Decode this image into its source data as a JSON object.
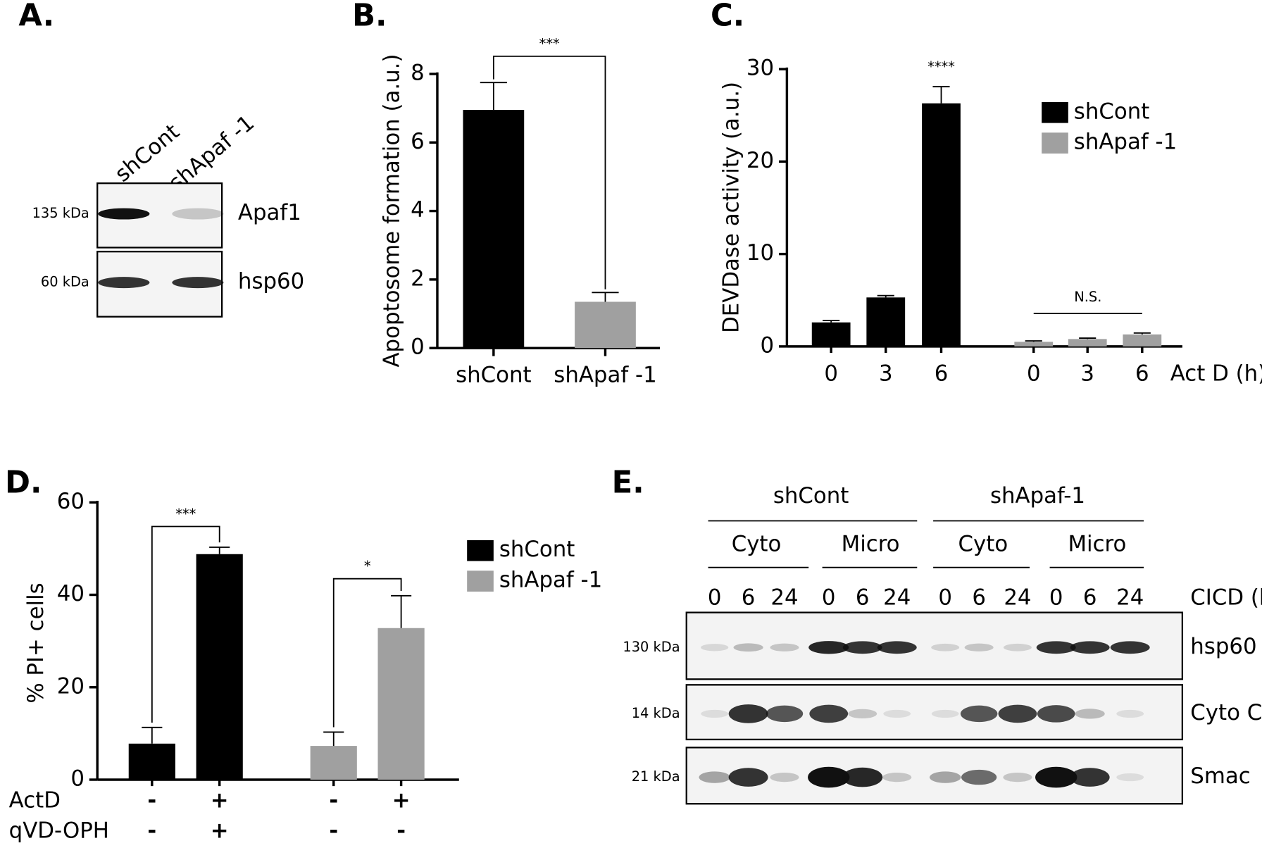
{
  "panels": {
    "A": {
      "letter": "A.",
      "lanes": [
        "shCont",
        "shApaf -1"
      ],
      "rows": [
        {
          "marker": "135 kDa",
          "label": "Apaf1"
        },
        {
          "marker": "60 kDa",
          "label": "hsp60"
        }
      ]
    },
    "E": {
      "letter": "E.",
      "groups": [
        "shCont",
        "shApaf-1"
      ],
      "fractions": [
        "Cyto",
        "Micro",
        "Cyto",
        "Micro"
      ],
      "times": [
        "0",
        "6",
        "24",
        "0",
        "6",
        "24",
        "0",
        "6",
        "24",
        "0",
        "6",
        "24"
      ],
      "time_label": "CICD (h)",
      "rows": [
        {
          "marker": "130 kDa",
          "label": "hsp60"
        },
        {
          "marker": "14 kDa",
          "label": "Cyto C"
        },
        {
          "marker": "21 kDa",
          "label": "Smac"
        }
      ]
    }
  },
  "chart_data": [
    {
      "type": "bar",
      "panel": "B.",
      "ylabel": "Apoptosome formation (a.u.)",
      "categories": [
        "shCont",
        "shApaf -1"
      ],
      "values": [
        6.95,
        1.35
      ],
      "errors": [
        0.8,
        0.27
      ],
      "colors": [
        "#000000",
        "#a0a0a0"
      ],
      "ylim": [
        0,
        8
      ],
      "yticks": [
        0,
        2,
        4,
        6,
        8
      ],
      "annotations": [
        "***"
      ]
    },
    {
      "type": "grouped_bar",
      "panel": "C.",
      "ylabel": "DEVDase activity (a.u.)",
      "xlabel": "Act D (h)",
      "categories": [
        "0",
        "3",
        "6"
      ],
      "series": [
        {
          "name": "shCont",
          "color": "#000000",
          "values": [
            2.6,
            5.3,
            26.3
          ],
          "errors": [
            0.2,
            0.2,
            1.8
          ]
        },
        {
          "name": "shApaf -1",
          "color": "#a0a0a0",
          "values": [
            0.5,
            0.8,
            1.3
          ],
          "errors": [
            0.1,
            0.1,
            0.15
          ]
        }
      ],
      "ylim": [
        0,
        30
      ],
      "yticks": [
        0,
        10,
        20,
        30
      ],
      "legend": "upper right",
      "annotations": [
        "****",
        "N.S."
      ]
    },
    {
      "type": "grouped_bar",
      "panel": "D.",
      "ylabel": "% PI+ cells",
      "series": [
        {
          "name": "shCont",
          "color": "#000000",
          "values": [
            7.8,
            48.8
          ],
          "errors": [
            3.5,
            1.5
          ]
        },
        {
          "name": "shApaf -1",
          "color": "#a0a0a0",
          "values": [
            7.3,
            32.8
          ],
          "errors": [
            3.0,
            7.0
          ]
        }
      ],
      "conditions": [
        {
          "name": "ActD",
          "values": [
            "-",
            "+",
            "-",
            "+"
          ]
        },
        {
          "name": "qVD-OPH",
          "values": [
            "-",
            "+",
            "-",
            "-"
          ]
        }
      ],
      "ylim": [
        0,
        60
      ],
      "yticks": [
        0,
        20,
        40,
        60
      ],
      "legend": "right",
      "annotations": [
        "***",
        "*"
      ]
    }
  ]
}
